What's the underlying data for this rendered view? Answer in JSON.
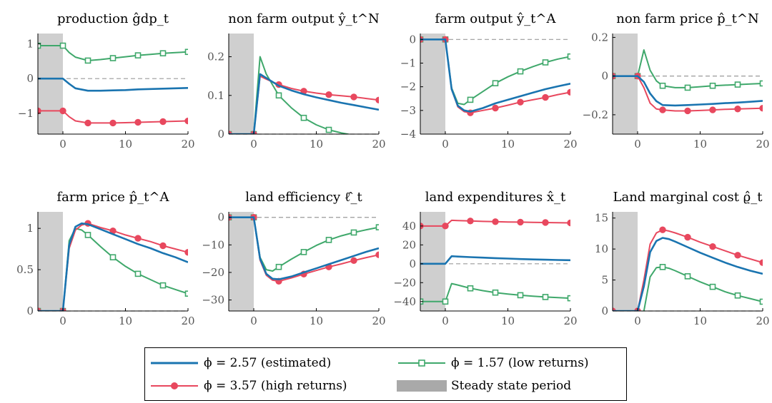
{
  "colors": {
    "estimated": "#1a74b0",
    "high": "#e8485e",
    "low": "#3fa86b",
    "shade": "#cfcfcf",
    "zero": "#9a9a9a",
    "axis": "#000000",
    "tick_text": "#555555"
  },
  "legend": {
    "items": [
      {
        "key": "estimated",
        "label": "ϕ = 2.57 (estimated)",
        "marker": "none"
      },
      {
        "key": "low",
        "label": "ϕ = 1.57 (low returns)",
        "marker": "square"
      },
      {
        "key": "high",
        "label": "ϕ = 3.57 (high returns)",
        "marker": "circle"
      },
      {
        "key": "shade",
        "label": "Steady state period",
        "marker": "patch"
      }
    ]
  },
  "chart_data": [
    {
      "type": "line",
      "title": "production ĝdp_t",
      "xlim": [
        -4,
        20
      ],
      "ylim": [
        -1.6,
        1.3
      ],
      "xticks": [
        0,
        10,
        20
      ],
      "xtick_labels": [
        "0",
        "10",
        "20"
      ],
      "yticks": [
        -1,
        0,
        1
      ],
      "ytick_labels": [
        "−1",
        "0",
        "1"
      ],
      "shade": [
        -4,
        0
      ],
      "series": [
        {
          "key": "estimated",
          "x": [
            -4,
            0,
            1,
            2,
            4,
            6,
            8,
            10,
            12,
            14,
            16,
            18,
            20
          ],
          "y": [
            0,
            0,
            -0.15,
            -0.28,
            -0.35,
            -0.35,
            -0.34,
            -0.33,
            -0.31,
            -0.3,
            -0.29,
            -0.28,
            -0.27
          ]
        },
        {
          "key": "low",
          "x": [
            -4,
            0,
            1,
            2,
            4,
            6,
            8,
            10,
            12,
            14,
            16,
            18,
            20
          ],
          "y": [
            0.95,
            0.95,
            0.75,
            0.62,
            0.52,
            0.55,
            0.59,
            0.63,
            0.67,
            0.7,
            0.73,
            0.75,
            0.77
          ]
        },
        {
          "key": "high",
          "x": [
            -4,
            0,
            1,
            2,
            4,
            6,
            8,
            10,
            12,
            14,
            16,
            18,
            20
          ],
          "y": [
            -0.93,
            -0.93,
            -1.1,
            -1.22,
            -1.28,
            -1.28,
            -1.28,
            -1.27,
            -1.26,
            -1.25,
            -1.24,
            -1.23,
            -1.22
          ]
        }
      ]
    },
    {
      "type": "line",
      "title": "non farm output ŷ_t^N",
      "xlim": [
        -4,
        20
      ],
      "ylim": [
        0,
        0.26
      ],
      "xticks": [
        0,
        10,
        20
      ],
      "xtick_labels": [
        "0",
        "10",
        "20"
      ],
      "yticks": [
        0,
        0.1,
        0.2
      ],
      "ytick_labels": [
        "0",
        "0.1",
        "0.2"
      ],
      "shade": [
        -4,
        0
      ],
      "series": [
        {
          "key": "estimated",
          "x": [
            -4,
            0,
            1,
            2,
            4,
            6,
            8,
            10,
            12,
            14,
            16,
            18,
            20
          ],
          "y": [
            0,
            0,
            0.155,
            0.145,
            0.125,
            0.113,
            0.103,
            0.095,
            0.088,
            0.081,
            0.075,
            0.069,
            0.063
          ]
        },
        {
          "key": "low",
          "x": [
            -4,
            0,
            1,
            2,
            4,
            6,
            8,
            10,
            12,
            14,
            15,
            16,
            18,
            20
          ],
          "y": [
            0,
            0,
            0.2,
            0.155,
            0.1,
            0.068,
            0.042,
            0.024,
            0.011,
            0.003,
            0,
            -0.004,
            -0.01,
            -0.015
          ]
        },
        {
          "key": "high",
          "x": [
            -4,
            0,
            1,
            2,
            4,
            6,
            8,
            10,
            12,
            14,
            16,
            18,
            20
          ],
          "y": [
            0,
            0,
            0.15,
            0.142,
            0.128,
            0.118,
            0.111,
            0.106,
            0.102,
            0.099,
            0.096,
            0.092,
            0.088
          ]
        }
      ]
    },
    {
      "type": "line",
      "title": "farm output ŷ_t^A",
      "xlim": [
        -4,
        20
      ],
      "ylim": [
        -4,
        0.25
      ],
      "xticks": [
        0,
        10,
        20
      ],
      "xtick_labels": [
        "0",
        "10",
        "20"
      ],
      "yticks": [
        -4,
        -3,
        -2,
        -1,
        0
      ],
      "ytick_labels": [
        "−4",
        "−3",
        "−2",
        "−1",
        "0"
      ],
      "shade": [
        -4,
        0
      ],
      "series": [
        {
          "key": "estimated",
          "x": [
            -4,
            0,
            1,
            2,
            3,
            4,
            6,
            8,
            10,
            12,
            14,
            16,
            18,
            20
          ],
          "y": [
            0,
            0,
            -2.1,
            -2.8,
            -3.0,
            -3.05,
            -2.9,
            -2.7,
            -2.55,
            -2.4,
            -2.25,
            -2.1,
            -1.98,
            -1.87
          ]
        },
        {
          "key": "low",
          "x": [
            -4,
            0,
            1,
            2,
            3,
            4,
            6,
            8,
            10,
            12,
            14,
            16,
            18,
            20
          ],
          "y": [
            0,
            0,
            -2.05,
            -2.7,
            -2.75,
            -2.55,
            -2.2,
            -1.85,
            -1.58,
            -1.35,
            -1.15,
            -0.97,
            -0.83,
            -0.72
          ]
        },
        {
          "key": "high",
          "x": [
            -4,
            0,
            1,
            2,
            3,
            4,
            6,
            8,
            10,
            12,
            14,
            16,
            18,
            20
          ],
          "y": [
            0,
            0,
            -2.1,
            -2.85,
            -3.05,
            -3.1,
            -3.0,
            -2.9,
            -2.78,
            -2.65,
            -2.55,
            -2.45,
            -2.33,
            -2.23
          ]
        }
      ]
    },
    {
      "type": "line",
      "title": "non farm price p̂_t^N",
      "xlim": [
        -4,
        20
      ],
      "ylim": [
        -0.3,
        0.22
      ],
      "xticks": [
        0,
        10,
        20
      ],
      "xtick_labels": [
        "0",
        "10",
        "20"
      ],
      "yticks": [
        -0.2,
        0,
        0.2
      ],
      "ytick_labels": [
        "−0.2",
        "0",
        "0.2"
      ],
      "shade": [
        -4,
        0
      ],
      "series": [
        {
          "key": "estimated",
          "x": [
            -4,
            0,
            1,
            2,
            3,
            4,
            6,
            8,
            10,
            12,
            14,
            16,
            18,
            20
          ],
          "y": [
            0,
            0,
            -0.03,
            -0.09,
            -0.13,
            -0.15,
            -0.152,
            -0.15,
            -0.147,
            -0.144,
            -0.14,
            -0.137,
            -0.133,
            -0.128
          ]
        },
        {
          "key": "low",
          "x": [
            -4,
            0,
            1,
            2,
            3,
            4,
            6,
            8,
            10,
            12,
            14,
            16,
            18,
            20
          ],
          "y": [
            0,
            0,
            0.135,
            0.03,
            -0.025,
            -0.05,
            -0.06,
            -0.06,
            -0.055,
            -0.05,
            -0.047,
            -0.044,
            -0.041,
            -0.038
          ]
        },
        {
          "key": "high",
          "x": [
            -4,
            0,
            1,
            2,
            3,
            4,
            6,
            8,
            10,
            12,
            14,
            16,
            18,
            20
          ],
          "y": [
            0,
            0,
            -0.06,
            -0.14,
            -0.17,
            -0.175,
            -0.18,
            -0.18,
            -0.178,
            -0.175,
            -0.172,
            -0.17,
            -0.168,
            -0.166
          ]
        }
      ]
    },
    {
      "type": "line",
      "title": "farm price p̂_t^A",
      "xlim": [
        -4,
        20
      ],
      "ylim": [
        0,
        1.2
      ],
      "xticks": [
        0,
        10,
        20
      ],
      "xtick_labels": [
        "0",
        "10",
        "20"
      ],
      "yticks": [
        0,
        0.5,
        1
      ],
      "ytick_labels": [
        "0",
        "0.5",
        "1"
      ],
      "shade": [
        -4,
        0
      ],
      "series": [
        {
          "key": "estimated",
          "x": [
            -4,
            0,
            1,
            2,
            3,
            4,
            6,
            8,
            10,
            12,
            14,
            16,
            18,
            20
          ],
          "y": [
            0,
            0,
            0.8,
            1.02,
            1.06,
            1.05,
            0.99,
            0.93,
            0.87,
            0.81,
            0.76,
            0.7,
            0.65,
            0.59
          ]
        },
        {
          "key": "low",
          "x": [
            -4,
            0,
            1,
            2,
            3,
            4,
            6,
            8,
            10,
            12,
            14,
            16,
            18,
            20
          ],
          "y": [
            0,
            0,
            0.85,
            1.0,
            0.98,
            0.92,
            0.78,
            0.65,
            0.54,
            0.45,
            0.38,
            0.31,
            0.26,
            0.21
          ]
        },
        {
          "key": "high",
          "x": [
            -4,
            0,
            1,
            2,
            3,
            4,
            6,
            8,
            10,
            12,
            14,
            16,
            18,
            20
          ],
          "y": [
            0,
            0,
            0.76,
            0.98,
            1.04,
            1.06,
            1.01,
            0.97,
            0.92,
            0.88,
            0.84,
            0.79,
            0.75,
            0.71
          ]
        }
      ]
    },
    {
      "type": "line",
      "title": "land efficiency ℓ̂_t",
      "xlim": [
        -4,
        20
      ],
      "ylim": [
        -34,
        2
      ],
      "xticks": [
        0,
        10,
        20
      ],
      "xtick_labels": [
        "0",
        "10",
        "20"
      ],
      "yticks": [
        -30,
        -20,
        -10,
        0
      ],
      "ytick_labels": [
        "−30",
        "−20",
        "−10",
        "0"
      ],
      "shade": [
        -4,
        0
      ],
      "series": [
        {
          "key": "estimated",
          "x": [
            -4,
            0,
            1,
            2,
            3,
            4,
            6,
            8,
            10,
            12,
            14,
            16,
            18,
            20
          ],
          "y": [
            0,
            0,
            -15,
            -20.5,
            -22.3,
            -22.5,
            -21.5,
            -20,
            -18.5,
            -17,
            -15.5,
            -14,
            -12.5,
            -11.2
          ]
        },
        {
          "key": "low",
          "x": [
            -4,
            0,
            1,
            2,
            3,
            4,
            6,
            8,
            10,
            12,
            14,
            16,
            18,
            20
          ],
          "y": [
            0,
            0,
            -14.5,
            -19,
            -19.5,
            -18,
            -15.2,
            -12.6,
            -10.2,
            -8.2,
            -6.7,
            -5.5,
            -4.5,
            -3.6
          ]
        },
        {
          "key": "high",
          "x": [
            -4,
            0,
            1,
            2,
            3,
            4,
            6,
            8,
            10,
            12,
            14,
            16,
            18,
            20
          ],
          "y": [
            0,
            0,
            -15.5,
            -21,
            -22.8,
            -23.2,
            -22,
            -20.6,
            -19.3,
            -18,
            -16.9,
            -15.7,
            -14.6,
            -13.6
          ]
        }
      ]
    },
    {
      "type": "line",
      "title": "land expenditures x̂_t",
      "xlim": [
        -4,
        20
      ],
      "ylim": [
        -50,
        55
      ],
      "xticks": [
        0,
        10,
        20
      ],
      "xtick_labels": [
        "0",
        "10",
        "20"
      ],
      "yticks": [
        -40,
        -20,
        0,
        20,
        40
      ],
      "ytick_labels": [
        "−40",
        "−20",
        "0",
        "20",
        "40"
      ],
      "shade": [
        -4,
        0
      ],
      "series": [
        {
          "key": "estimated",
          "x": [
            -4,
            0,
            1,
            2,
            4,
            6,
            8,
            10,
            12,
            14,
            16,
            18,
            20
          ],
          "y": [
            0,
            0,
            8,
            7.6,
            7,
            6.5,
            6,
            5.5,
            5,
            4.6,
            4.3,
            4,
            3.8
          ]
        },
        {
          "key": "low",
          "x": [
            -4,
            0,
            1,
            2,
            4,
            6,
            8,
            10,
            12,
            14,
            16,
            18,
            20
          ],
          "y": [
            -40,
            -40,
            -21,
            -22.5,
            -26,
            -28.5,
            -30.5,
            -32,
            -33.3,
            -34.3,
            -35.2,
            -35.9,
            -36.5
          ]
        },
        {
          "key": "high",
          "x": [
            -4,
            0,
            1,
            2,
            4,
            6,
            8,
            10,
            12,
            14,
            16,
            18,
            20
          ],
          "y": [
            40,
            40,
            46,
            45.8,
            45.3,
            44.9,
            44.6,
            44.3,
            44.1,
            43.9,
            43.7,
            43.5,
            43.3
          ]
        }
      ]
    },
    {
      "type": "line",
      "title": "Land marginal cost ϱ̂_t",
      "xlim": [
        -4,
        20
      ],
      "ylim": [
        0,
        16
      ],
      "xticks": [
        0,
        10,
        20
      ],
      "xtick_labels": [
        "0",
        "10",
        "20"
      ],
      "yticks": [
        0,
        5,
        10,
        15
      ],
      "ytick_labels": [
        "0",
        "5",
        "10",
        "15"
      ],
      "shade": [
        -4,
        0
      ],
      "series": [
        {
          "key": "estimated",
          "x": [
            -4,
            0,
            1,
            2,
            3,
            4,
            5,
            6,
            8,
            10,
            12,
            14,
            16,
            18,
            20
          ],
          "y": [
            0,
            0,
            4,
            9.5,
            11.3,
            11.8,
            11.6,
            11.2,
            10.3,
            9.4,
            8.6,
            7.8,
            7.1,
            6.5,
            6.0
          ]
        },
        {
          "key": "low",
          "x": [
            1,
            2,
            3,
            4,
            5,
            6,
            8,
            10,
            12,
            14,
            16,
            18,
            20
          ],
          "y": [
            0,
            5.5,
            7.0,
            7.1,
            6.9,
            6.5,
            5.6,
            4.7,
            3.9,
            3.1,
            2.5,
            2.0,
            1.5
          ]
        },
        {
          "key": "high",
          "x": [
            -4,
            0,
            1,
            2,
            3,
            4,
            5,
            6,
            8,
            10,
            12,
            14,
            16,
            18,
            20
          ],
          "y": [
            0,
            0,
            5,
            10.8,
            12.6,
            13.1,
            12.9,
            12.6,
            11.9,
            11.1,
            10.4,
            9.7,
            9.0,
            8.4,
            7.8
          ]
        }
      ]
    }
  ]
}
